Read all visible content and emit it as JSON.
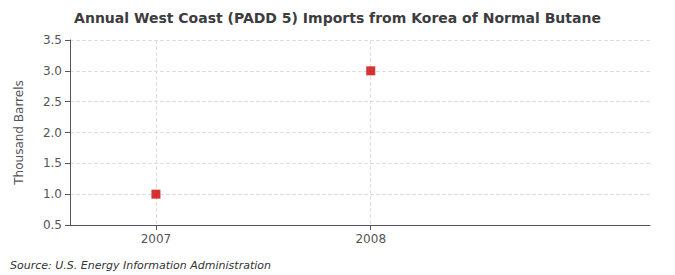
{
  "chart_data": {
    "type": "scatter",
    "title": "Annual West Coast (PADD 5) Imports from Korea of Normal Butane",
    "ylabel": "Thousand Barrels",
    "annotations": [
      "Source: U.S. Energy Information Administration"
    ],
    "x": [
      2007,
      2008
    ],
    "values": [
      1.0,
      3.0
    ],
    "color": "#CC0000",
    "marker": "square",
    "xlim": [
      2006.6,
      2009.3
    ],
    "xticks": [
      2007,
      2008
    ],
    "ylim": [
      0.5,
      3.5
    ],
    "yticks": [
      0.5,
      {
        "value": 1.0,
        "label": "1.0"
      },
      1.5,
      {
        "value": 2.0,
        "label": "2.0"
      },
      2.5,
      {
        "value": 3.0,
        "label": "3.0"
      },
      3.5
    ],
    "grid": true
  }
}
